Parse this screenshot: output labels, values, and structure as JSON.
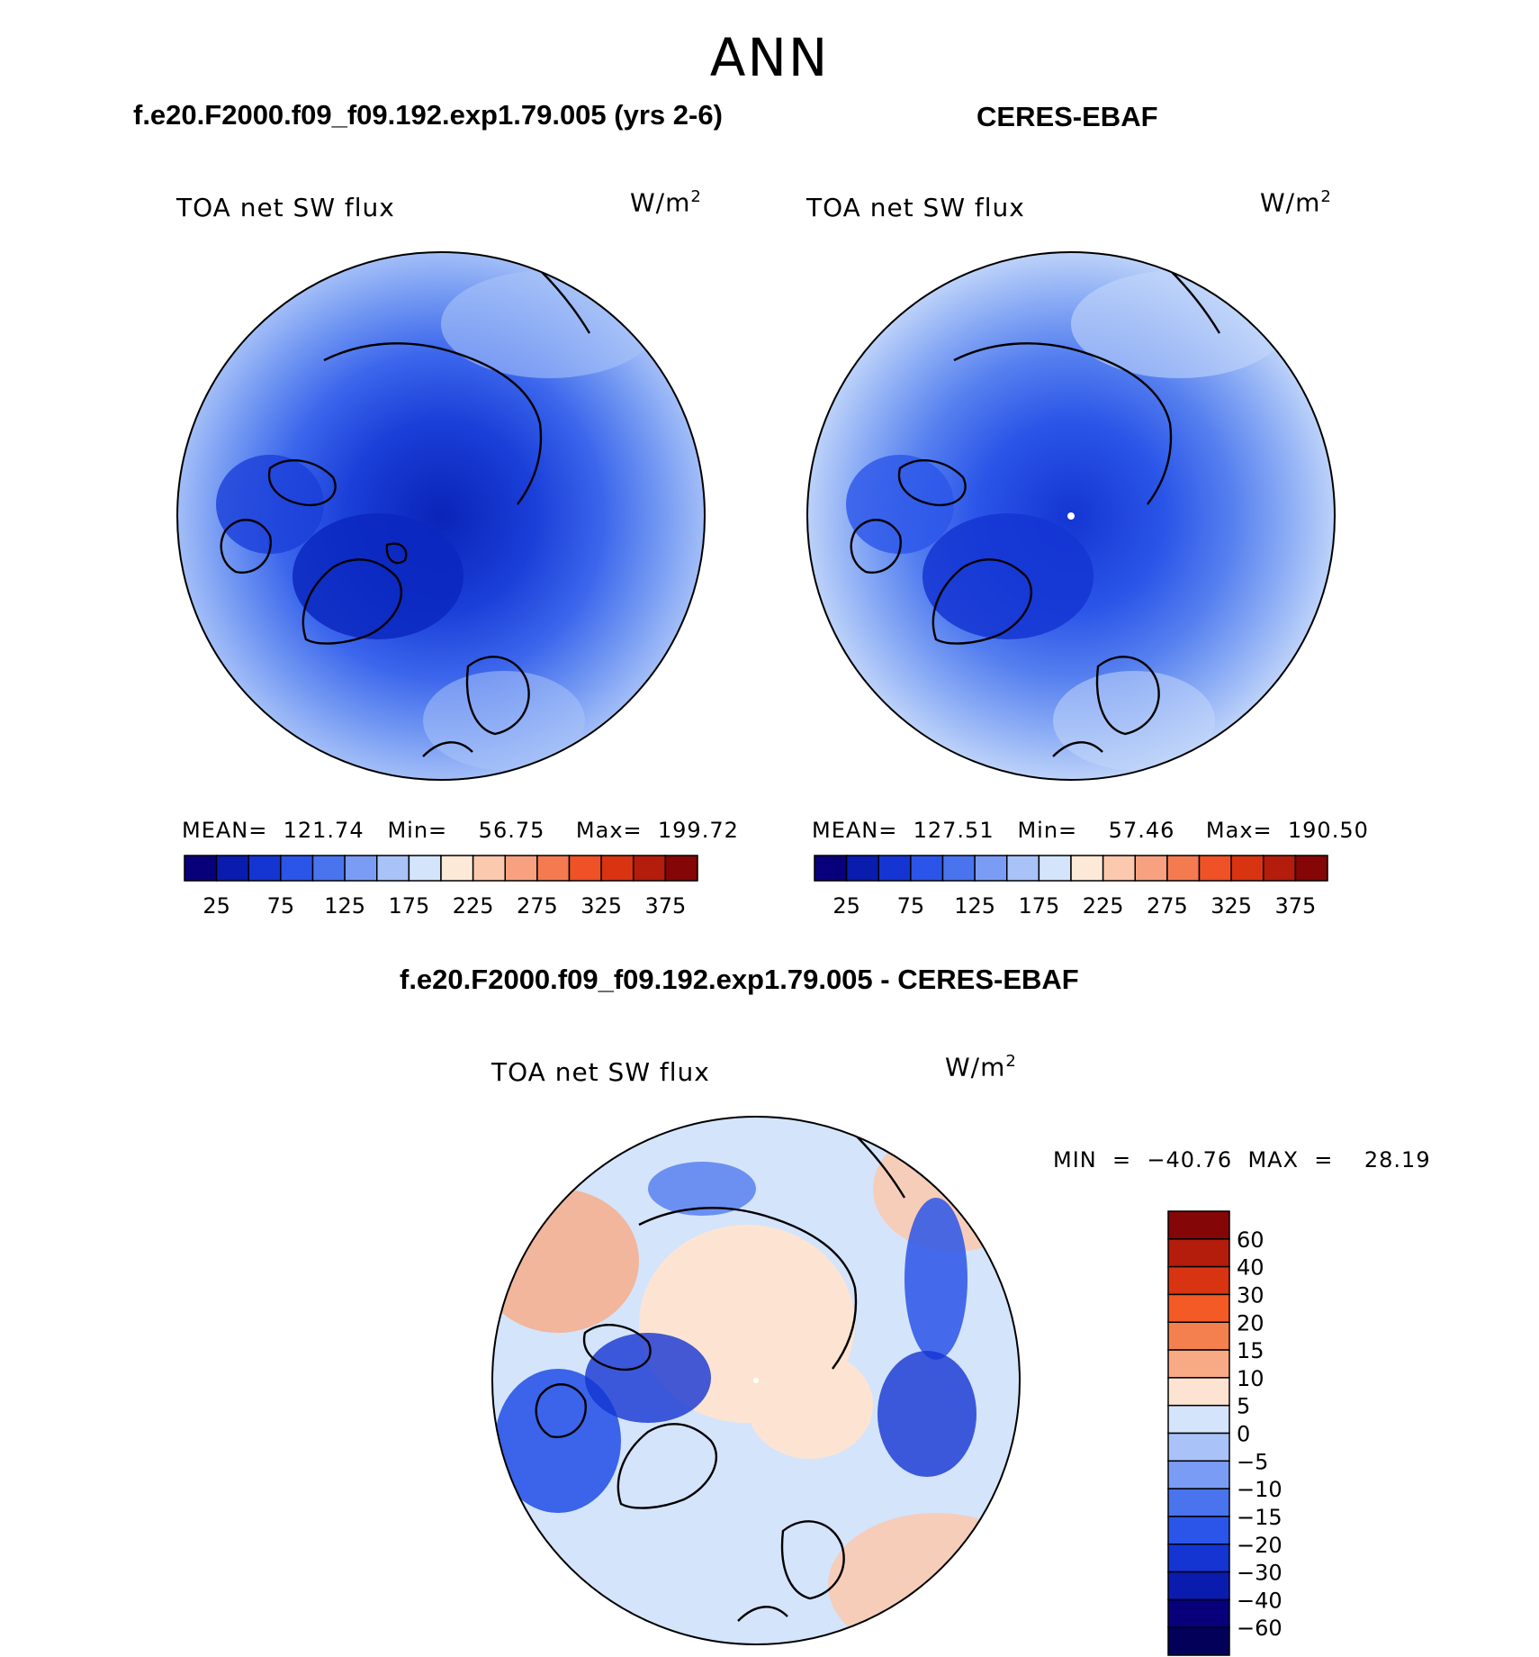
{
  "page": {
    "season": "ANN",
    "model_title": "f.e20.F2000.f09_f09.192.exp1.79.005 (yrs 2-6)",
    "obs_title": "CERES-EBAF",
    "diff_title": "f.e20.F2000.f09_f09.192.exp1.79.005 - CERES-EBAF"
  },
  "panels": [
    {
      "field": "TOA net SW flux",
      "units": "W/m",
      "units_exp": "2",
      "stats": "MEAN=  121.74   Min=    56.75    Max=  199.72"
    },
    {
      "field": "TOA net SW flux",
      "units": "W/m",
      "units_exp": "2",
      "stats": "MEAN=  127.51   Min=    57.46    Max=  190.50"
    },
    {
      "field": "TOA net SW flux",
      "units": "W/m",
      "units_exp": "2",
      "stats": "MIN  =  −40.76  MAX  =    28.19"
    }
  ],
  "colorbar_abs": {
    "labels": [
      "25",
      "75",
      "125",
      "175",
      "225",
      "275",
      "325",
      "375"
    ],
    "colors": [
      "#08007a",
      "#0a1cae",
      "#1435d2",
      "#2a55e8",
      "#4a74ee",
      "#7a9cf4",
      "#a9c3f8",
      "#d4e4fb",
      "#fde9d8",
      "#fbc9ad",
      "#f8a180",
      "#f47a50",
      "#ee5226",
      "#d93412",
      "#b41c0c",
      "#840606"
    ]
  },
  "colorbar_diff": {
    "labels": [
      "60",
      "40",
      "30",
      "20",
      "15",
      "10",
      "5",
      "0",
      "−5",
      "−10",
      "−15",
      "−20",
      "−30",
      "−40",
      "−60"
    ],
    "colors": [
      "#840606",
      "#b41c0c",
      "#d93412",
      "#f35a26",
      "#f48050",
      "#f8aa85",
      "#fde4d2",
      "#d4e4fb",
      "#a9c3f8",
      "#7a9cf4",
      "#4a74ee",
      "#2a55e8",
      "#1435d2",
      "#0a1cae",
      "#08007a",
      "#03005a"
    ]
  }
}
